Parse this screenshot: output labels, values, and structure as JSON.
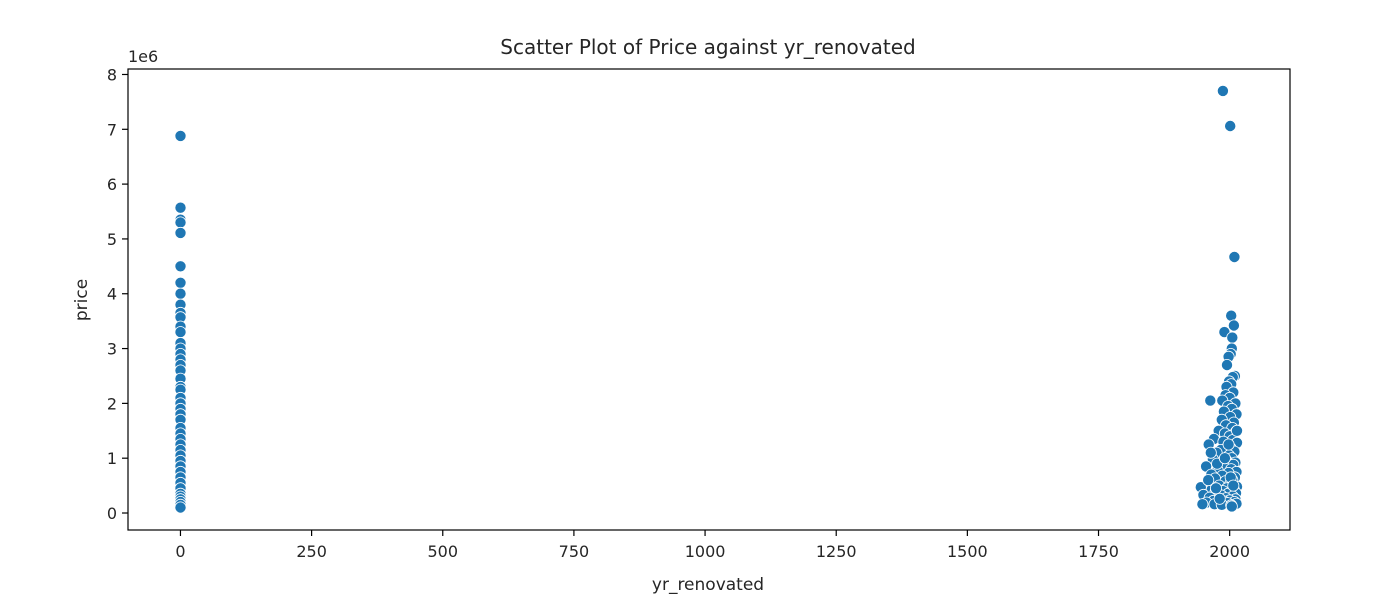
{
  "chart_data": {
    "type": "scatter",
    "title": "Scatter Plot of Price against  yr_renovated",
    "xlabel": "yr_renovated",
    "ylabel": "price",
    "offset_label": "1e6",
    "xlim": [
      -100,
      2115
    ],
    "ylim": [
      -310000,
      8100000
    ],
    "x_ticks": [
      0,
      250,
      500,
      750,
      1000,
      1250,
      1500,
      1750,
      2000
    ],
    "y_ticks": [
      0,
      1000000,
      2000000,
      3000000,
      4000000,
      5000000,
      6000000,
      7000000,
      8000000
    ],
    "x_tick_labels": [
      "0",
      "250",
      "500",
      "750",
      "1000",
      "1250",
      "1500",
      "1750",
      "2000"
    ],
    "y_tick_labels": [
      "0",
      "1",
      "2",
      "3",
      "4",
      "5",
      "6",
      "7",
      "8"
    ],
    "grid": false,
    "marker_color": "#1f77b4",
    "series": [
      {
        "points": [
          [
            0,
            6880000
          ],
          [
            0,
            5570000
          ],
          [
            0,
            5350000
          ],
          [
            0,
            5300000
          ],
          [
            0,
            5110000
          ],
          [
            0,
            4500000
          ],
          [
            0,
            4200000
          ],
          [
            0,
            4000000
          ],
          [
            0,
            3800000
          ],
          [
            0,
            3650000
          ],
          [
            0,
            3570000
          ],
          [
            0,
            3400000
          ],
          [
            0,
            3300000
          ],
          [
            0,
            3100000
          ],
          [
            0,
            3000000
          ],
          [
            0,
            2900000
          ],
          [
            0,
            2800000
          ],
          [
            0,
            2700000
          ],
          [
            0,
            2600000
          ],
          [
            0,
            2450000
          ],
          [
            0,
            2300000
          ],
          [
            0,
            2250000
          ],
          [
            0,
            2100000
          ],
          [
            0,
            2000000
          ],
          [
            0,
            1900000
          ],
          [
            0,
            1800000
          ],
          [
            0,
            1700000
          ],
          [
            0,
            1550000
          ],
          [
            0,
            1450000
          ],
          [
            0,
            1350000
          ],
          [
            0,
            1250000
          ],
          [
            0,
            1150000
          ],
          [
            0,
            1050000
          ],
          [
            0,
            950000
          ],
          [
            0,
            850000
          ],
          [
            0,
            750000
          ],
          [
            0,
            650000
          ],
          [
            0,
            550000
          ],
          [
            0,
            450000
          ],
          [
            0,
            350000
          ],
          [
            0,
            300000
          ],
          [
            0,
            250000
          ],
          [
            0,
            200000
          ],
          [
            0,
            150000
          ],
          [
            0,
            100000
          ],
          [
            1987,
            7700000
          ],
          [
            2001,
            7060000
          ],
          [
            2009,
            4670000
          ],
          [
            2003,
            3600000
          ],
          [
            2008,
            3420000
          ],
          [
            1990,
            3300000
          ],
          [
            2005,
            3200000
          ],
          [
            2004,
            3000000
          ],
          [
            2002,
            2900000
          ],
          [
            1998,
            2850000
          ],
          [
            1995,
            2700000
          ],
          [
            2010,
            2500000
          ],
          [
            2006,
            2480000
          ],
          [
            1999,
            2400000
          ],
          [
            2003,
            2350000
          ],
          [
            1994,
            2300000
          ],
          [
            2007,
            2200000
          ],
          [
            1992,
            2150000
          ],
          [
            2000,
            2100000
          ],
          [
            1986,
            2050000
          ],
          [
            1963,
            2050000
          ],
          [
            2011,
            2000000
          ],
          [
            1997,
            1950000
          ],
          [
            2004,
            1900000
          ],
          [
            1989,
            1850000
          ],
          [
            2013,
            1800000
          ],
          [
            2001,
            1750000
          ],
          [
            1985,
            1700000
          ],
          [
            2008,
            1650000
          ],
          [
            1993,
            1600000
          ],
          [
            2005,
            1550000
          ],
          [
            1979,
            1500000
          ],
          [
            2012,
            1480000
          ],
          [
            1991,
            1450000
          ],
          [
            2000,
            1400000
          ],
          [
            1970,
            1350000
          ],
          [
            2006,
            1330000
          ],
          [
            1988,
            1300000
          ],
          [
            2014,
            1280000
          ],
          [
            1960,
            1250000
          ],
          [
            1996,
            1200000
          ],
          [
            2002,
            1180000
          ],
          [
            1983,
            1150000
          ],
          [
            2009,
            1120000
          ],
          [
            1975,
            1100000
          ],
          [
            1999,
            1050000
          ],
          [
            2004,
            1000000
          ],
          [
            1968,
            980000
          ],
          [
            1994,
            950000
          ],
          [
            2011,
            920000
          ],
          [
            1982,
            900000
          ],
          [
            2007,
            880000
          ],
          [
            1955,
            850000
          ],
          [
            1990,
            830000
          ],
          [
            2003,
            800000
          ],
          [
            1977,
            780000
          ],
          [
            2013,
            750000
          ],
          [
            1998,
            730000
          ],
          [
            1965,
            700000
          ],
          [
            1986,
            680000
          ],
          [
            2010,
            650000
          ],
          [
            1972,
            630000
          ],
          [
            2005,
            600000
          ],
          [
            1992,
            580000
          ],
          [
            1958,
            550000
          ],
          [
            2001,
            530000
          ],
          [
            1980,
            500000
          ],
          [
            2014,
            480000
          ],
          [
            1945,
            470000
          ],
          [
            1995,
            450000
          ],
          [
            1966,
            430000
          ],
          [
            2008,
            420000
          ],
          [
            1987,
            400000
          ],
          [
            1973,
            380000
          ],
          [
            2012,
            360000
          ],
          [
            1997,
            350000
          ],
          [
            1950,
            330000
          ],
          [
            1984,
            320000
          ],
          [
            2006,
            300000
          ],
          [
            1962,
            280000
          ],
          [
            1993,
            270000
          ],
          [
            2011,
            250000
          ],
          [
            1978,
            240000
          ],
          [
            2000,
            230000
          ],
          [
            1969,
            220000
          ],
          [
            1989,
            210000
          ],
          [
            2009,
            200000
          ],
          [
            1956,
            190000
          ],
          [
            1996,
            180000
          ],
          [
            2013,
            170000
          ],
          [
            1971,
            160000
          ],
          [
            1948,
            160000
          ],
          [
            1985,
            150000
          ],
          [
            2003,
            140000
          ],
          [
            2004,
            120000
          ],
          [
            1981,
            260000
          ],
          [
            1959,
            600000
          ],
          [
            1976,
            900000
          ],
          [
            1964,
            1100000
          ],
          [
            1991,
            1000000
          ],
          [
            2002,
            650000
          ],
          [
            2014,
            1500000
          ],
          [
            1998,
            1250000
          ],
          [
            2007,
            500000
          ],
          [
            1974,
            450000
          ]
        ]
      }
    ]
  }
}
